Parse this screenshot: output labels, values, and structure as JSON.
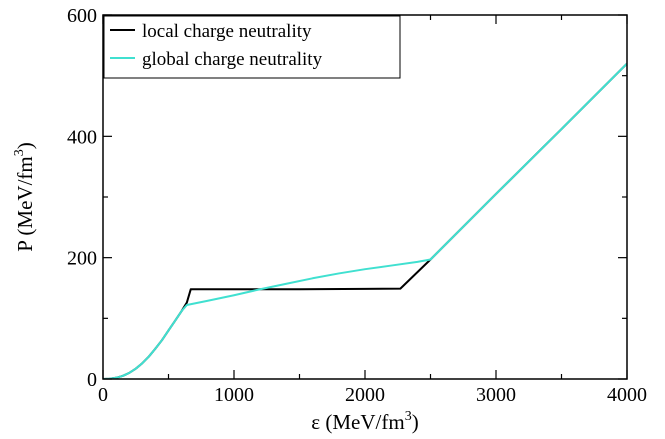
{
  "chart_data": {
    "type": "line",
    "title": "",
    "xlabel": {
      "main": "ε (MeV/fm",
      "sup": "3",
      "close": ")"
    },
    "ylabel": {
      "main": "P (MeV/fm",
      "sup": "3",
      "close": ")"
    },
    "xlim": [
      0,
      4000
    ],
    "ylim": [
      0,
      600
    ],
    "x_ticks": [
      0,
      1000,
      2000,
      3000,
      4000
    ],
    "y_ticks": [
      0,
      200,
      400,
      600
    ],
    "x_minor_step": 500,
    "y_minor_step": 100,
    "grid": false,
    "legend_position": "top-left",
    "series": [
      {
        "name": "local charge neutrality",
        "color": "#000000",
        "points": [
          [
            0,
            0
          ],
          [
            50,
            0.5
          ],
          [
            100,
            2
          ],
          [
            150,
            5
          ],
          [
            200,
            10
          ],
          [
            250,
            17
          ],
          [
            300,
            26
          ],
          [
            350,
            37
          ],
          [
            400,
            50
          ],
          [
            450,
            64
          ],
          [
            500,
            80
          ],
          [
            550,
            96
          ],
          [
            600,
            112
          ],
          [
            640,
            126
          ],
          [
            670,
            148
          ],
          [
            1000,
            148
          ],
          [
            1500,
            148
          ],
          [
            2000,
            148.5
          ],
          [
            2270,
            149
          ],
          [
            2500,
            197
          ],
          [
            3000,
            305
          ],
          [
            3500,
            412
          ],
          [
            4000,
            520
          ]
        ]
      },
      {
        "name": "global charge neutrality",
        "color": "#40E0D0",
        "points": [
          [
            0,
            0
          ],
          [
            50,
            0.5
          ],
          [
            100,
            2
          ],
          [
            150,
            5
          ],
          [
            200,
            10
          ],
          [
            250,
            17
          ],
          [
            300,
            26
          ],
          [
            350,
            37
          ],
          [
            400,
            50
          ],
          [
            450,
            64
          ],
          [
            500,
            80
          ],
          [
            550,
            96
          ],
          [
            600,
            112
          ],
          [
            640,
            122
          ],
          [
            800,
            129
          ],
          [
            1000,
            138
          ],
          [
            1200,
            148
          ],
          [
            1400,
            157
          ],
          [
            1600,
            166
          ],
          [
            1800,
            174
          ],
          [
            2000,
            181
          ],
          [
            2200,
            187
          ],
          [
            2400,
            193
          ],
          [
            2500,
            197
          ],
          [
            3000,
            305
          ],
          [
            3500,
            412
          ],
          [
            4000,
            520
          ]
        ]
      }
    ]
  }
}
